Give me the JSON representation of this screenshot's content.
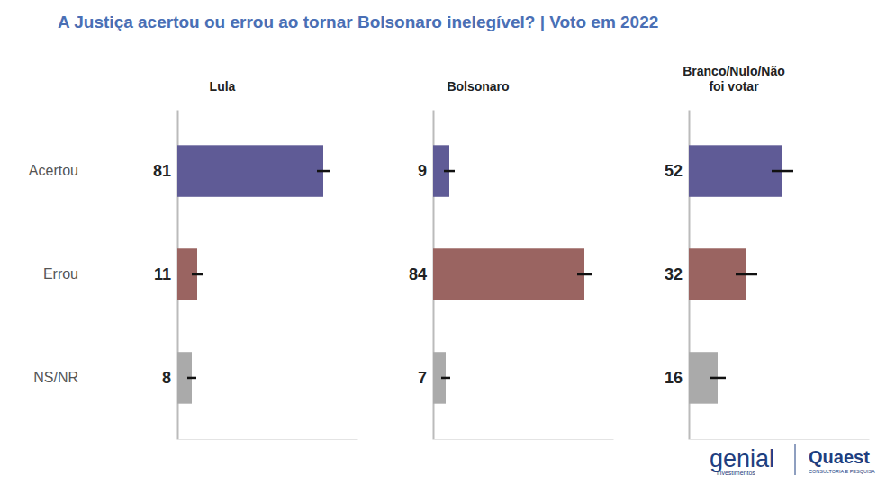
{
  "chart_data": {
    "type": "bar",
    "title": "A Justiça acertou ou errou ao tornar Bolsonaro inelegível? | Voto em 2022",
    "orientation": "horizontal",
    "data_labels": true,
    "tick_labels": "y",
    "grid": false,
    "categories": [
      "Acertou",
      "Errou",
      "NS/NR"
    ],
    "xlim": [
      0,
      100
    ],
    "series": [
      {
        "name": "Lula",
        "values": [
          81,
          11,
          8
        ],
        "errors": [
          3.5,
          3,
          2.5
        ],
        "colors": [
          "#5f5b96",
          "#9a6461",
          "#aaaaaa"
        ]
      },
      {
        "name": "Bolsonaro",
        "values": [
          9,
          84,
          7
        ],
        "errors": [
          3,
          4,
          2.5
        ],
        "colors": [
          "#5f5b96",
          "#9a6461",
          "#aaaaaa"
        ]
      },
      {
        "name": "Branco/Nulo/Não foi votar",
        "values": [
          52,
          32,
          16
        ],
        "errors": [
          6,
          6,
          4.5
        ],
        "colors": [
          "#5f5b96",
          "#9a6461",
          "#aaaaaa"
        ]
      }
    ],
    "annotations": [
      "genial",
      "investimentos",
      "Quaest",
      "CONSULTORIA E PESQUISA"
    ]
  }
}
